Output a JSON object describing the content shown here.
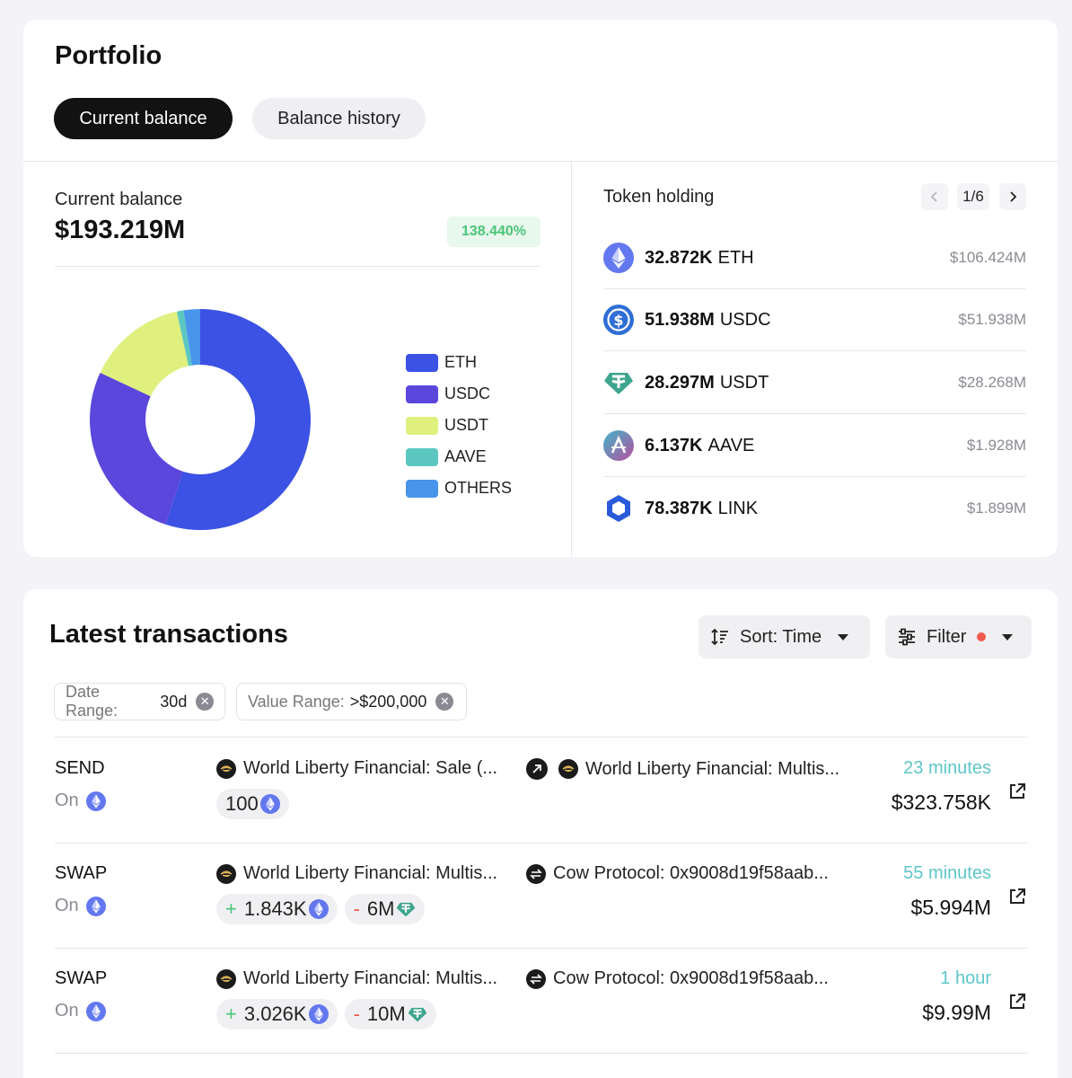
{
  "portfolio": {
    "title": "Portfolio",
    "tabs": [
      "Current balance",
      "Balance history"
    ],
    "current_balance_label": "Current balance",
    "current_balance_value": "$193.219M",
    "change_pct": "138.440%",
    "allocation": [
      {
        "label": "ETH",
        "color": "#3b52e4",
        "value": 55.08
      },
      {
        "label": "USDC",
        "color": "#5b47dc",
        "value": 26.88
      },
      {
        "label": "USDT",
        "color": "#dff07e",
        "value": 14.63
      },
      {
        "label": "AAVE",
        "color": "#5cc7c1",
        "value": 1.0
      },
      {
        "label": "OTHERS",
        "color": "#4895ec",
        "value": 2.41
      }
    ],
    "token_holding": {
      "title": "Token holding",
      "page": "1/6",
      "tokens": [
        {
          "amount": "32.872K",
          "symbol": "ETH",
          "usd": "$106.424M",
          "icon": "eth-icon"
        },
        {
          "amount": "51.938M",
          "symbol": "USDC",
          "usd": "$51.938M",
          "icon": "usdc-icon"
        },
        {
          "amount": "28.297M",
          "symbol": "USDT",
          "usd": "$28.268M",
          "icon": "usdt-icon"
        },
        {
          "amount": "6.137K",
          "symbol": "AAVE",
          "usd": "$1.928M",
          "icon": "aave-icon"
        },
        {
          "amount": "78.387K",
          "symbol": "LINK",
          "usd": "$1.899M",
          "icon": "link-icon"
        }
      ]
    }
  },
  "transactions": {
    "title": "Latest transactions",
    "sort_label": "Sort: Time",
    "filter_label": "Filter",
    "chips": [
      {
        "key": "Date Range:",
        "value": "30d"
      },
      {
        "key": "Value Range:",
        "value": ">$200,000"
      }
    ],
    "rows": [
      {
        "type": "SEND",
        "on": "On",
        "from": "World Liberty Financial: Sale (...",
        "to": "World Liberty Financial: Multis...",
        "amounts": [
          {
            "sign": "",
            "value": "100",
            "token": "eth"
          }
        ],
        "time": "23 minutes",
        "usd": "$323.758K"
      },
      {
        "type": "SWAP",
        "on": "On",
        "from": "World Liberty Financial: Multis...",
        "to": "Cow Protocol: 0x9008d19f58aab...",
        "amounts": [
          {
            "sign": "+",
            "value": "1.843K",
            "token": "eth"
          },
          {
            "sign": "-",
            "value": "6M",
            "token": "usdt"
          }
        ],
        "time": "55 minutes",
        "usd": "$5.994M"
      },
      {
        "type": "SWAP",
        "on": "On",
        "from": "World Liberty Financial: Multis...",
        "to": "Cow Protocol: 0x9008d19f58aab...",
        "amounts": [
          {
            "sign": "+",
            "value": "3.026K",
            "token": "eth"
          },
          {
            "sign": "-",
            "value": "10M",
            "token": "usdt"
          }
        ],
        "time": "1 hour",
        "usd": "$9.99M"
      }
    ]
  }
}
